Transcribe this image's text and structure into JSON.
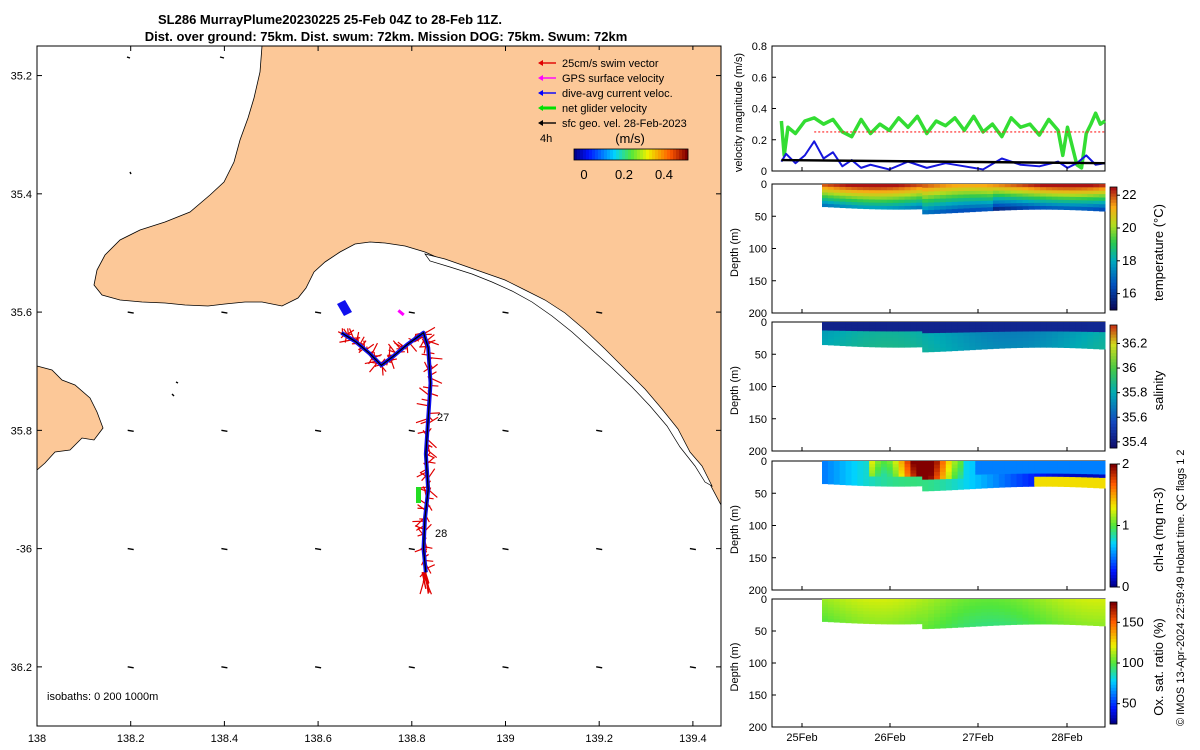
{
  "chart_data": [
    {
      "type": "map",
      "title_line1": "SL286 MurrayPlume20230225 25-Feb 04Z to 28-Feb 11Z.",
      "title_line2": "Dist. over ground: 75km. Dist. swum: 72km. Mission DOG: 75km. Swum: 72km",
      "xlim": [
        138.0,
        139.46
      ],
      "ylim": [
        -36.3,
        -35.15
      ],
      "x_ticks": [
        138,
        138.2,
        138.4,
        138.6,
        138.8,
        139,
        139.2,
        139.4
      ],
      "x_tick_labels": [
        "138",
        "138.2",
        "138.4",
        "138.6",
        "138.8",
        "139",
        "139.2",
        "139.4"
      ],
      "y_ticks": [
        -35.2,
        -35.4,
        -35.6,
        -35.8,
        -36,
        -36.2
      ],
      "y_tick_labels": [
        "35.2",
        "35.4",
        "35.6",
        "35.8",
        "-36",
        "36.2"
      ],
      "legend": [
        {
          "label": "25cm/s swim vector",
          "color": "#e00000"
        },
        {
          "label": "GPS surface velocity",
          "color": "#ff00ff"
        },
        {
          "label": "dive-avg current veloc.",
          "color": "#0000ff"
        },
        {
          "label": "net glider velocity",
          "color": "#00e000"
        },
        {
          "label": "sfc geo. vel. 28-Feb-2023",
          "color": "#000000"
        }
      ],
      "legend_note": "4h",
      "colorbar": {
        "label": "(m/s)",
        "ticks": [
          "0",
          "0.2",
          "0.4"
        ],
        "range": [
          0,
          0.5
        ]
      },
      "day_labels": [
        {
          "text": "27",
          "lon": 138.84,
          "lat": -35.82
        },
        {
          "text": "28",
          "lon": 138.84,
          "lat": -36.02
        }
      ],
      "isobath_note": "isobaths: 0   200  1000m",
      "track": [
        [
          138.65,
          -35.635
        ],
        [
          138.68,
          -35.65
        ],
        [
          138.71,
          -35.67
        ],
        [
          138.735,
          -35.69
        ],
        [
          138.76,
          -35.675
        ],
        [
          138.79,
          -35.655
        ],
        [
          138.825,
          -35.635
        ],
        [
          138.835,
          -35.66
        ],
        [
          138.84,
          -35.72
        ],
        [
          138.835,
          -35.78
        ],
        [
          138.83,
          -35.84
        ],
        [
          138.835,
          -35.9
        ],
        [
          138.828,
          -35.95
        ],
        [
          138.825,
          -36.0
        ],
        [
          138.83,
          -36.04
        ]
      ],
      "vector_grid_lons": [
        138.2,
        138.4,
        138.6,
        138.8,
        139.0,
        139.2,
        139.4
      ],
      "vector_grid_lats": [
        -35.2,
        -35.4,
        -35.6,
        -35.8,
        -36.0,
        -36.2
      ]
    },
    {
      "type": "line",
      "ylabel": "velocity magnitude (m/s)",
      "ylim": [
        0,
        0.8
      ],
      "y_ticks": [
        "0",
        "0.2",
        "0.4",
        "0.6",
        "0.8"
      ],
      "xlim": [
        0,
        3.55
      ],
      "series": [
        {
          "name": "net glider velocity",
          "color": "#33dd33",
          "x": [
            0.05,
            0.08,
            0.12,
            0.2,
            0.3,
            0.4,
            0.5,
            0.6,
            0.7,
            0.8,
            0.9,
            1.0,
            1.1,
            1.2,
            1.3,
            1.4,
            1.5,
            1.6,
            1.7,
            1.8,
            1.9,
            2.0,
            2.1,
            2.2,
            2.3,
            2.4,
            2.5,
            2.6,
            2.7,
            2.8,
            2.9,
            3.0,
            3.05,
            3.1,
            3.2,
            3.25,
            3.3,
            3.35,
            3.4,
            3.45,
            3.5
          ],
          "y": [
            0.32,
            0.1,
            0.28,
            0.24,
            0.32,
            0.34,
            0.3,
            0.33,
            0.25,
            0.22,
            0.33,
            0.24,
            0.3,
            0.26,
            0.34,
            0.28,
            0.35,
            0.24,
            0.32,
            0.29,
            0.34,
            0.26,
            0.35,
            0.25,
            0.3,
            0.22,
            0.34,
            0.28,
            0.3,
            0.23,
            0.33,
            0.26,
            0.1,
            0.28,
            0.04,
            0.02,
            0.24,
            0.3,
            0.37,
            0.3,
            0.32
          ]
        },
        {
          "name": "dive-avg current veloc.",
          "color": "#1515dd",
          "x": [
            0.05,
            0.1,
            0.2,
            0.3,
            0.4,
            0.5,
            0.6,
            0.7,
            0.8,
            0.9,
            1.0,
            1.2,
            1.4,
            1.6,
            1.8,
            2.0,
            2.2,
            2.4,
            2.6,
            2.8,
            3.0,
            3.1,
            3.2,
            3.3,
            3.4,
            3.5
          ],
          "y": [
            0.06,
            0.11,
            0.05,
            0.1,
            0.19,
            0.08,
            0.12,
            0.03,
            0.07,
            0.02,
            0.04,
            0.01,
            0.06,
            0.02,
            0.05,
            0.03,
            0.01,
            0.08,
            0.04,
            0.03,
            0.06,
            0.02,
            0.05,
            0.1,
            0.04,
            0.05
          ]
        },
        {
          "name": "sfc geo. vel.",
          "color": "#000000",
          "x": [
            0.05,
            3.5
          ],
          "y": [
            0.07,
            0.05
          ]
        },
        {
          "name": "swim speed",
          "color": "#ff2222",
          "x": [
            0.4,
            3.5
          ],
          "y": [
            0.25,
            0.25
          ]
        }
      ]
    },
    {
      "type": "heatmap",
      "ylabel": "Depth (m)",
      "clabel": "temperature (°C)",
      "ylim": [
        0,
        200
      ],
      "y_ticks": [
        "0",
        "50",
        "100",
        "150",
        "200"
      ],
      "c_ticks": [
        "16",
        "18",
        "20",
        "22"
      ],
      "c_range": [
        15,
        22.5
      ],
      "colormap": "thermal"
    },
    {
      "type": "heatmap",
      "ylabel": "Depth (m)",
      "clabel": "salinity",
      "ylim": [
        0,
        200
      ],
      "y_ticks": [
        "0",
        "50",
        "100",
        "150",
        "200"
      ],
      "c_ticks": [
        "35.4",
        "35.6",
        "35.8",
        "36",
        "36.2"
      ],
      "c_range": [
        35.35,
        36.35
      ],
      "colormap": "haline"
    },
    {
      "type": "heatmap",
      "ylabel": "Depth (m)",
      "clabel": "chl-a (mg m-3)",
      "ylim": [
        0,
        200
      ],
      "y_ticks": [
        "0",
        "50",
        "100",
        "150",
        "200"
      ],
      "c_ticks": [
        "0",
        "1",
        "2"
      ],
      "c_range": [
        0,
        2
      ],
      "colormap": "jet"
    },
    {
      "type": "heatmap",
      "ylabel": "Depth (m)",
      "clabel": "Ox. sat. ratio (%)",
      "ylim": [
        0,
        200
      ],
      "y_ticks": [
        "0",
        "50",
        "100",
        "150",
        "200"
      ],
      "c_ticks": [
        "50",
        "100",
        "150"
      ],
      "c_range": [
        25,
        175
      ],
      "colormap": "jet",
      "x_tick_labels": [
        "25Feb",
        "26Feb",
        "27Feb",
        "28Feb"
      ]
    }
  ],
  "footer": "© IMOS 13-Apr-2024 22:59:49 Hobart time. QC flags 1  2",
  "colors": {
    "land": "#fcc898",
    "sea": "#ffffff",
    "track_blue": "#1010ee",
    "swim_red": "#e00000"
  }
}
